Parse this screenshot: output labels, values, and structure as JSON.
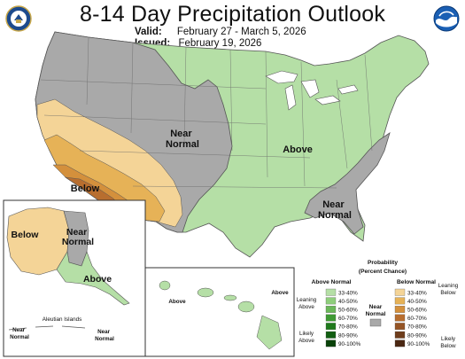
{
  "title": "8-14 Day Precipitation Outlook",
  "valid_label": "Valid:",
  "valid_dates": "February 27 - March 5, 2026",
  "issued_label": "Issued:",
  "issued_date": "February 19, 2026",
  "logos": {
    "left": "doc-seal-icon",
    "right": "noaa-logo-icon"
  },
  "regions": {
    "conus_near_normal_west": "Near Normal",
    "conus_above": "Above",
    "conus_below": "Below",
    "conus_near_normal_southeast": "Near Normal",
    "alaska_below": "Below",
    "alaska_near_normal": "Near Normal",
    "alaska_above": "Above",
    "aleutian": "Aleutian Islands",
    "aleutian_near_normal_left": "Near Normal",
    "aleutian_near_normal_right": "Near Normal",
    "hawaii_above_left": "Above",
    "hawaii_above_right": "Above"
  },
  "legend": {
    "title_line1": "Probability",
    "title_line2": "(Percent Chance)",
    "above_header": "Above Normal",
    "below_header": "Below Normal",
    "near_header_1": "Near",
    "near_header_2": "Normal",
    "leaning_above_1": "Leaning",
    "leaning_above_2": "Above",
    "likely_above_1": "Likely",
    "likely_above_2": "Above",
    "leaning_below_1": "Leaning",
    "leaning_below_2": "Below",
    "likely_below_1": "Likely",
    "likely_below_2": "Below",
    "above_bins": [
      "33-40%",
      "40-50%",
      "50-60%",
      "60-70%",
      "70-80%",
      "80-90%",
      "90-100%"
    ],
    "below_bins": [
      "33-40%",
      "40-50%",
      "50-60%",
      "60-70%",
      "70-80%",
      "80-90%",
      "90-100%"
    ],
    "above_colors": [
      "#b5dfa6",
      "#8fce7c",
      "#6bb85a",
      "#3f9a34",
      "#1f7a1c",
      "#125e12",
      "#0a420a"
    ],
    "below_colors": [
      "#f4d497",
      "#e6b257",
      "#d4903c",
      "#b86e2f",
      "#955425",
      "#6e3c1b",
      "#4a2712"
    ],
    "near_color": "#a9a9a9"
  },
  "colors": {
    "above": "#b5dfa6",
    "near_normal": "#a9a9a9",
    "below_33_40": "#f4d497",
    "below_40_50": "#e6b257",
    "below_50_60": "#d4903c",
    "below_60_70": "#b86e2f",
    "water": "#ffffff",
    "border": "#555555"
  }
}
